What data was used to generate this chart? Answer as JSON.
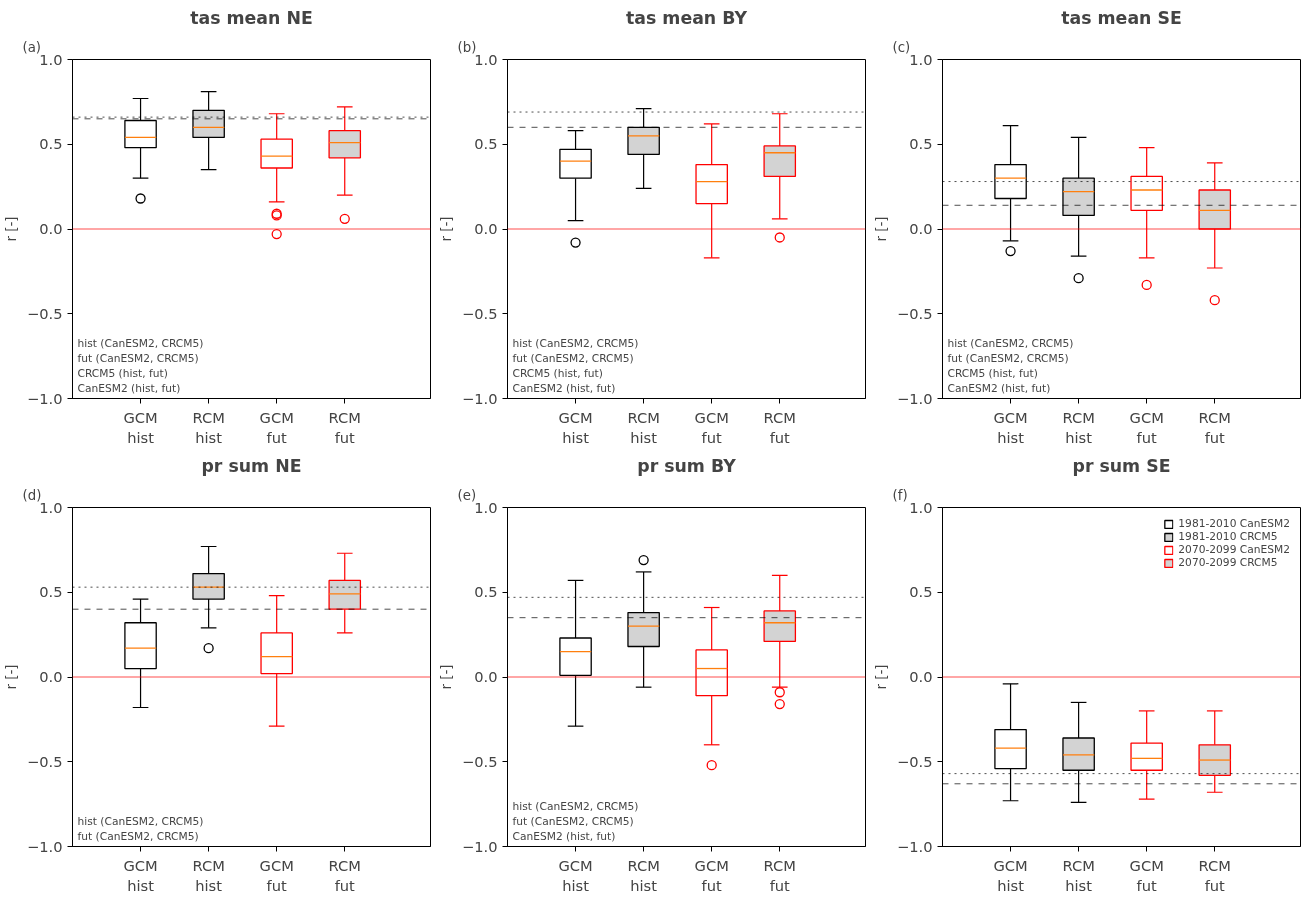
{
  "chart_data": [
    {
      "type": "box",
      "title": "tas mean NE",
      "subtitle": "(a)",
      "ylabel": "r [-]",
      "categories": [
        "GCM\nhist",
        "RCM\nhist",
        "GCM\nfut",
        "RCM\nfut"
      ],
      "ylim": [
        -1,
        1
      ],
      "yticks": [
        {
          "value": -1,
          "label": "−1.0"
        },
        {
          "value": -0.5,
          "label": "−0.5"
        },
        {
          "value": 0,
          "label": "0.0"
        },
        {
          "value": 0.5,
          "label": "0.5"
        },
        {
          "value": 1,
          "label": "1.0"
        }
      ],
      "grid": false,
      "legend": false,
      "marker": "circle",
      "series": [
        {
          "color": "#000000",
          "colors": [
            "#ffffff",
            null,
            null,
            null
          ],
          "boxes": [
            {
              "low": 0.3,
              "q1": 0.48,
              "median": 0.54,
              "q3": 0.64,
              "high": 0.77,
              "outliers": [
                0.18
              ]
            },
            null,
            null,
            null
          ]
        },
        {
          "color": "#000000",
          "colors": [
            null,
            "#d3d3d3",
            null,
            null
          ],
          "boxes": [
            null,
            {
              "low": 0.35,
              "q1": 0.54,
              "median": 0.6,
              "q3": 0.7,
              "high": 0.81
            },
            null,
            null
          ]
        },
        {
          "color": "#ff0000",
          "colors": [
            null,
            null,
            "#ffffff",
            null
          ],
          "boxes": [
            null,
            null,
            {
              "low": 0.16,
              "q1": 0.36,
              "median": 0.43,
              "q3": 0.53,
              "high": 0.68,
              "outliers": [
                0.09,
                0.08,
                -0.03
              ]
            },
            null
          ]
        },
        {
          "color": "#ff0000",
          "colors": [
            null,
            null,
            null,
            "#d3d3d3"
          ],
          "boxes": [
            null,
            null,
            null,
            {
              "low": 0.2,
              "q1": 0.42,
              "median": 0.51,
              "q3": 0.58,
              "high": 0.72,
              "outliers": [
                0.06
              ]
            }
          ]
        }
      ],
      "ref_lines": [
        {
          "axis": "y",
          "value": 0.66,
          "color": "#000000",
          "line_style": "dotted"
        },
        {
          "axis": "y",
          "value": 0.65,
          "color": "#000000",
          "line_style": "dashed"
        },
        {
          "axis": "y",
          "value": 0,
          "color": "#ff0000",
          "line_style": "solid"
        }
      ],
      "annotations": [
        "hist (CanESM2, CRCM5)",
        "fut (CanESM2, CRCM5)",
        "CRCM5 (hist, fut)",
        "CanESM2 (hist, fut)"
      ]
    },
    {
      "type": "box",
      "title": "tas mean BY",
      "subtitle": "(b)",
      "ylabel": "r [-]",
      "categories": [
        "GCM\nhist",
        "RCM\nhist",
        "GCM\nfut",
        "RCM\nfut"
      ],
      "ylim": [
        -1,
        1
      ],
      "yticks": [
        {
          "value": -1,
          "label": "−1.0"
        },
        {
          "value": -0.5,
          "label": "−0.5"
        },
        {
          "value": 0,
          "label": "0.0"
        },
        {
          "value": 0.5,
          "label": "0.5"
        },
        {
          "value": 1,
          "label": "1.0"
        }
      ],
      "grid": false,
      "legend": false,
      "marker": "circle",
      "series": [
        {
          "color": "#000000",
          "colors": [
            "#ffffff",
            null,
            null,
            null
          ],
          "boxes": [
            {
              "low": 0.05,
              "q1": 0.3,
              "median": 0.4,
              "q3": 0.47,
              "high": 0.58,
              "outliers": [
                -0.08
              ]
            },
            null,
            null,
            null
          ]
        },
        {
          "color": "#000000",
          "colors": [
            null,
            "#d3d3d3",
            null,
            null
          ],
          "boxes": [
            null,
            {
              "low": 0.24,
              "q1": 0.44,
              "median": 0.55,
              "q3": 0.6,
              "high": 0.71
            },
            null,
            null
          ]
        },
        {
          "color": "#ff0000",
          "colors": [
            null,
            null,
            "#ffffff",
            null
          ],
          "boxes": [
            null,
            null,
            {
              "low": -0.17,
              "q1": 0.15,
              "median": 0.28,
              "q3": 0.38,
              "high": 0.62
            },
            null
          ]
        },
        {
          "color": "#ff0000",
          "colors": [
            null,
            null,
            null,
            "#d3d3d3"
          ],
          "boxes": [
            null,
            null,
            null,
            {
              "low": 0.06,
              "q1": 0.31,
              "median": 0.45,
              "q3": 0.49,
              "high": 0.68,
              "outliers": [
                -0.05
              ]
            }
          ]
        }
      ],
      "ref_lines": [
        {
          "axis": "y",
          "value": 0.69,
          "color": "#000000",
          "line_style": "dotted"
        },
        {
          "axis": "y",
          "value": 0.6,
          "color": "#000000",
          "line_style": "dashed"
        },
        {
          "axis": "y",
          "value": 0,
          "color": "#ff0000",
          "line_style": "solid"
        }
      ],
      "annotations": [
        "hist (CanESM2, CRCM5)",
        "fut (CanESM2, CRCM5)",
        "CRCM5 (hist, fut)",
        "CanESM2 (hist, fut)"
      ]
    },
    {
      "type": "box",
      "title": "tas mean SE",
      "subtitle": "(c)",
      "ylabel": "r [-]",
      "categories": [
        "GCM\nhist",
        "RCM\nhist",
        "GCM\nfut",
        "RCM\nfut"
      ],
      "ylim": [
        -1,
        1
      ],
      "yticks": [
        {
          "value": -1,
          "label": "−1.0"
        },
        {
          "value": -0.5,
          "label": "−0.5"
        },
        {
          "value": 0,
          "label": "0.0"
        },
        {
          "value": 0.5,
          "label": "0.5"
        },
        {
          "value": 1,
          "label": "1.0"
        }
      ],
      "grid": false,
      "legend": false,
      "marker": "circle",
      "series": [
        {
          "color": "#000000",
          "colors": [
            "#ffffff",
            null,
            null,
            null
          ],
          "boxes": [
            {
              "low": -0.07,
              "q1": 0.18,
              "median": 0.3,
              "q3": 0.38,
              "high": 0.61,
              "outliers": [
                -0.13
              ]
            },
            null,
            null,
            null
          ]
        },
        {
          "color": "#000000",
          "colors": [
            null,
            "#d3d3d3",
            null,
            null
          ],
          "boxes": [
            null,
            {
              "low": -0.16,
              "q1": 0.08,
              "median": 0.22,
              "q3": 0.3,
              "high": 0.54,
              "outliers": [
                -0.29
              ]
            },
            null,
            null
          ]
        },
        {
          "color": "#ff0000",
          "colors": [
            null,
            null,
            "#ffffff",
            null
          ],
          "boxes": [
            null,
            null,
            {
              "low": -0.17,
              "q1": 0.11,
              "median": 0.23,
              "q3": 0.31,
              "high": 0.48,
              "outliers": [
                -0.33
              ]
            },
            null
          ]
        },
        {
          "color": "#ff0000",
          "colors": [
            null,
            null,
            null,
            "#d3d3d3"
          ],
          "boxes": [
            null,
            null,
            null,
            {
              "low": -0.23,
              "q1": 0.0,
              "median": 0.11,
              "q3": 0.23,
              "high": 0.39,
              "outliers": [
                -0.42
              ]
            }
          ]
        }
      ],
      "ref_lines": [
        {
          "axis": "y",
          "value": 0.28,
          "color": "#000000",
          "line_style": "dotted"
        },
        {
          "axis": "y",
          "value": 0.14,
          "color": "#000000",
          "line_style": "dashed"
        },
        {
          "axis": "y",
          "value": 0,
          "color": "#ff0000",
          "line_style": "solid"
        }
      ],
      "annotations": [
        "hist (CanESM2, CRCM5)",
        "fut (CanESM2, CRCM5)",
        "CRCM5 (hist, fut)",
        "CanESM2 (hist, fut)"
      ]
    },
    {
      "type": "box",
      "title": "pr sum NE",
      "subtitle": "(d)",
      "ylabel": "r [-]",
      "categories": [
        "GCM\nhist",
        "RCM\nhist",
        "GCM\nfut",
        "RCM\nfut"
      ],
      "ylim": [
        -1,
        1
      ],
      "yticks": [
        {
          "value": -1,
          "label": "−1.0"
        },
        {
          "value": -0.5,
          "label": "−0.5"
        },
        {
          "value": 0,
          "label": "0.0"
        },
        {
          "value": 0.5,
          "label": "0.5"
        },
        {
          "value": 1,
          "label": "1.0"
        }
      ],
      "grid": false,
      "legend": false,
      "marker": "circle",
      "series": [
        {
          "color": "#000000",
          "colors": [
            "#ffffff",
            null,
            null,
            null
          ],
          "boxes": [
            {
              "low": -0.18,
              "q1": 0.05,
              "median": 0.17,
              "q3": 0.32,
              "high": 0.46
            },
            null,
            null,
            null
          ]
        },
        {
          "color": "#000000",
          "colors": [
            null,
            "#d3d3d3",
            null,
            null
          ],
          "boxes": [
            null,
            {
              "low": 0.29,
              "q1": 0.46,
              "median": 0.53,
              "q3": 0.61,
              "high": 0.77,
              "outliers": [
                0.17
              ]
            },
            null,
            null
          ]
        },
        {
          "color": "#ff0000",
          "colors": [
            null,
            null,
            "#ffffff",
            null
          ],
          "boxes": [
            null,
            null,
            {
              "low": -0.29,
              "q1": 0.02,
              "median": 0.12,
              "q3": 0.26,
              "high": 0.48
            },
            null
          ]
        },
        {
          "color": "#ff0000",
          "colors": [
            null,
            null,
            null,
            "#d3d3d3"
          ],
          "boxes": [
            null,
            null,
            null,
            {
              "low": 0.26,
              "q1": 0.4,
              "median": 0.49,
              "q3": 0.57,
              "high": 0.73
            }
          ]
        }
      ],
      "ref_lines": [
        {
          "axis": "y",
          "value": 0.53,
          "color": "#000000",
          "line_style": "dotted"
        },
        {
          "axis": "y",
          "value": 0.4,
          "color": "#000000",
          "line_style": "dashed"
        },
        {
          "axis": "y",
          "value": 0,
          "color": "#ff0000",
          "line_style": "solid"
        }
      ],
      "annotations": [
        "hist (CanESM2, CRCM5)",
        "fut (CanESM2, CRCM5)"
      ]
    },
    {
      "type": "box",
      "title": "pr sum BY",
      "subtitle": "(e)",
      "ylabel": "r [-]",
      "categories": [
        "GCM\nhist",
        "RCM\nhist",
        "GCM\nfut",
        "RCM\nfut"
      ],
      "ylim": [
        -1,
        1
      ],
      "yticks": [
        {
          "value": -1,
          "label": "−1.0"
        },
        {
          "value": -0.5,
          "label": "−0.5"
        },
        {
          "value": 0,
          "label": "0.0"
        },
        {
          "value": 0.5,
          "label": "0.5"
        },
        {
          "value": 1,
          "label": "1.0"
        }
      ],
      "grid": false,
      "legend": false,
      "marker": "circle",
      "series": [
        {
          "color": "#000000",
          "colors": [
            "#ffffff",
            null,
            null,
            null
          ],
          "boxes": [
            {
              "low": -0.29,
              "q1": 0.01,
              "median": 0.15,
              "q3": 0.23,
              "high": 0.57
            },
            null,
            null,
            null
          ]
        },
        {
          "color": "#000000",
          "colors": [
            null,
            "#d3d3d3",
            null,
            null
          ],
          "boxes": [
            null,
            {
              "low": -0.06,
              "q1": 0.18,
              "median": 0.3,
              "q3": 0.38,
              "high": 0.62,
              "outliers": [
                0.69
              ]
            },
            null,
            null
          ]
        },
        {
          "color": "#ff0000",
          "colors": [
            null,
            null,
            "#ffffff",
            null
          ],
          "boxes": [
            null,
            null,
            {
              "low": -0.4,
              "q1": -0.11,
              "median": 0.05,
              "q3": 0.16,
              "high": 0.41,
              "outliers": [
                -0.52
              ]
            },
            null
          ]
        },
        {
          "color": "#ff0000",
          "colors": [
            null,
            null,
            null,
            "#d3d3d3"
          ],
          "boxes": [
            null,
            null,
            null,
            {
              "low": -0.06,
              "q1": 0.21,
              "median": 0.32,
              "q3": 0.39,
              "high": 0.6,
              "outliers": [
                -0.09,
                -0.16
              ]
            }
          ]
        }
      ],
      "ref_lines": [
        {
          "axis": "y",
          "value": 0.47,
          "color": "#000000",
          "line_style": "dotted"
        },
        {
          "axis": "y",
          "value": 0.35,
          "color": "#000000",
          "line_style": "dashed"
        },
        {
          "axis": "y",
          "value": 0,
          "color": "#ff0000",
          "line_style": "solid"
        }
      ],
      "annotations": [
        "hist (CanESM2, CRCM5)",
        "fut (CanESM2, CRCM5)",
        "CanESM2 (hist, fut)"
      ]
    },
    {
      "type": "box",
      "title": "pr sum SE",
      "subtitle": "(f)",
      "ylabel": "r [-]",
      "categories": [
        "GCM\nhist",
        "RCM\nhist",
        "GCM\nfut",
        "RCM\nfut"
      ],
      "ylim": [
        -1,
        1
      ],
      "yticks": [
        {
          "value": -1,
          "label": "−1.0"
        },
        {
          "value": -0.5,
          "label": "−0.5"
        },
        {
          "value": 0,
          "label": "0.0"
        },
        {
          "value": 0.5,
          "label": "0.5"
        },
        {
          "value": 1,
          "label": "1.0"
        }
      ],
      "grid": false,
      "legend": "top right",
      "marker": "circle",
      "series": [
        {
          "name": "1981-2010 CanESM2",
          "color": "#000000",
          "colors": [
            "#ffffff",
            null,
            null,
            null
          ],
          "boxes": [
            {
              "low": -0.73,
              "q1": -0.54,
              "median": -0.42,
              "q3": -0.31,
              "high": -0.04
            },
            null,
            null,
            null
          ]
        },
        {
          "name": "1981-2010 CRCM5",
          "color": "#000000",
          "colors": [
            null,
            "#d3d3d3",
            null,
            null
          ],
          "boxes": [
            null,
            {
              "low": -0.74,
              "q1": -0.55,
              "median": -0.46,
              "q3": -0.36,
              "high": -0.15
            },
            null,
            null
          ]
        },
        {
          "name": "2070-2099 CanESM2",
          "color": "#ff0000",
          "colors": [
            null,
            null,
            "#ffffff",
            null
          ],
          "boxes": [
            null,
            null,
            {
              "low": -0.72,
              "q1": -0.55,
              "median": -0.48,
              "q3": -0.39,
              "high": -0.2
            },
            null
          ]
        },
        {
          "name": "2070-2099 CRCM5",
          "color": "#ff0000",
          "colors": [
            null,
            null,
            null,
            "#d3d3d3"
          ],
          "boxes": [
            null,
            null,
            null,
            {
              "low": -0.68,
              "q1": -0.58,
              "median": -0.49,
              "q3": -0.4,
              "high": -0.2
            }
          ]
        }
      ],
      "ref_lines": [
        {
          "axis": "y",
          "value": -0.57,
          "color": "#000000",
          "line_style": "dotted"
        },
        {
          "axis": "y",
          "value": -0.63,
          "color": "#000000",
          "line_style": "dashed"
        },
        {
          "axis": "y",
          "value": 0,
          "color": "#ff0000",
          "line_style": "solid"
        }
      ]
    }
  ]
}
